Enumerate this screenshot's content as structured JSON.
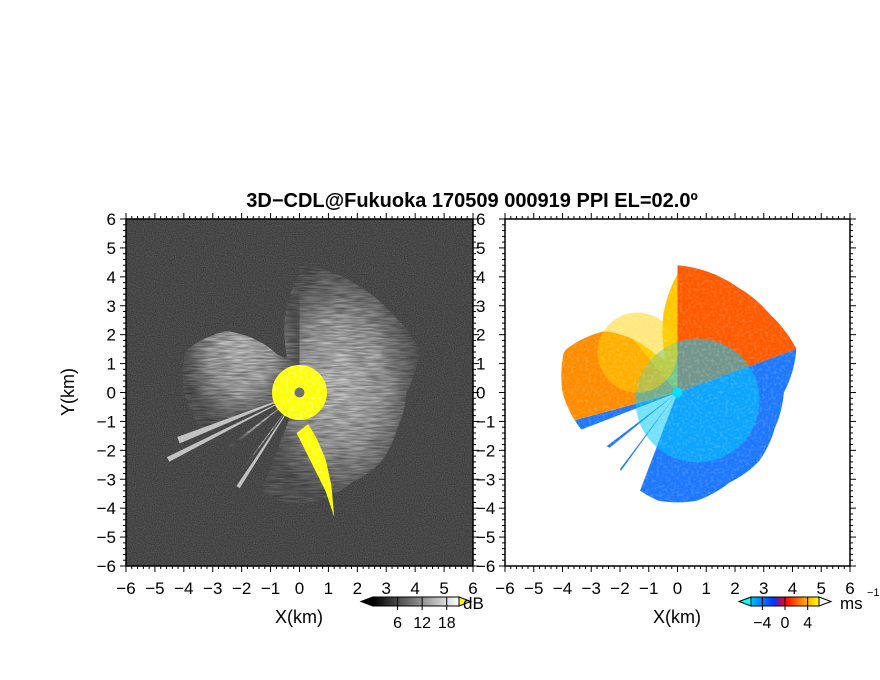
{
  "title": "3D−CDL@Fukuoka 170509 000919 PPI EL=02.0º",
  "chart_data": [
    {
      "type": "heatmap",
      "quantity": "reflectivity/SNR",
      "xlabel": "X(km)",
      "ylabel": "Y(km)",
      "xlim": [
        -6,
        6
      ],
      "ylim": [
        -6,
        6
      ],
      "x_ticks": [
        "−6",
        "−5",
        "−4",
        "−3",
        "−2",
        "−1",
        "0",
        "1",
        "2",
        "3",
        "4",
        "5",
        "6"
      ],
      "y_ticks": [
        "−6",
        "−5",
        "−4",
        "−3",
        "−2",
        "−1",
        "0",
        "1",
        "2",
        "3",
        "4",
        "5",
        "6"
      ],
      "colorbar": {
        "unit": "dB",
        "ticks": [
          "6",
          "12",
          "18"
        ],
        "tick_values": [
          6,
          12,
          18
        ],
        "range": [
          0,
          21
        ],
        "colors": [
          "#000000",
          "#ffffff"
        ],
        "over_color": "#ffff00"
      },
      "echo_extent_km": [
        [
          90,
          4.4
        ],
        [
          60,
          4.2
        ],
        [
          40,
          4.2
        ],
        [
          20,
          4.4
        ],
        [
          0,
          3.7
        ],
        [
          -20,
          3.6
        ],
        [
          -40,
          3.7
        ],
        [
          -60,
          3.6
        ],
        [
          -80,
          3.8
        ],
        [
          -100,
          3.8
        ],
        [
          -120,
          3.5
        ],
        [
          -140,
          3.0
        ],
        [
          -160,
          3.6
        ],
        [
          -180,
          4.0
        ],
        [
          -200,
          4.2
        ],
        [
          -220,
          3.3
        ],
        [
          -240,
          1.5
        ],
        [
          -250,
          1.2
        ],
        [
          -260,
          2.8
        ],
        [
          -270,
          4.1
        ]
      ],
      "gaps_deg": [
        [
          -158,
          -144
        ],
        [
          -140,
          -128
        ],
        [
          -125,
          -118
        ],
        [
          -121,
          -112
        ]
      ],
      "spokes_deg": [
        [
          -154,
          -152,
          5.1
        ],
        [
          -160,
          -157,
          4.5
        ],
        [
          -124,
          -122,
          3.9
        ]
      ],
      "yellow_region_km": [
        [
          0.3,
          -1.1
        ],
        [
          0.6,
          -1.6
        ],
        [
          0.9,
          -2.3
        ],
        [
          1.1,
          -3.2
        ],
        [
          1.2,
          -4.3
        ],
        [
          0.9,
          -3.4
        ],
        [
          0.4,
          -2.4
        ],
        [
          -0.1,
          -1.4
        ]
      ]
    },
    {
      "type": "heatmap",
      "quantity": "radial velocity",
      "xlabel": "X(km)",
      "ylabel": "",
      "xlim": [
        -6,
        6
      ],
      "ylim": [
        -6,
        6
      ],
      "x_ticks": [
        "−6",
        "−5",
        "−4",
        "−3",
        "−2",
        "−1",
        "0",
        "1",
        "2",
        "3",
        "4",
        "5",
        "6"
      ],
      "y_ticks": [
        "−6",
        "−5",
        "−4",
        "−3",
        "−2",
        "−1",
        "0",
        "1",
        "2",
        "3",
        "4",
        "5",
        "6"
      ],
      "colorbar": {
        "unit": "ms",
        "unit_exponent": "−1",
        "ticks": [
          "−4",
          "0",
          "4"
        ],
        "tick_values": [
          -4,
          0,
          4
        ],
        "range": [
          -6,
          6
        ],
        "colors": [
          "#00bfff",
          "#0033ff",
          "#ff0000",
          "#ffff00"
        ],
        "under_color": "#00ffff",
        "over_color": "#ffffff"
      },
      "echo_extent_km": [
        [
          90,
          4.4
        ],
        [
          60,
          4.2
        ],
        [
          40,
          4.2
        ],
        [
          20,
          4.4
        ],
        [
          0,
          3.7
        ],
        [
          -20,
          3.6
        ],
        [
          -40,
          3.7
        ],
        [
          -60,
          3.6
        ],
        [
          -80,
          3.8
        ],
        [
          -100,
          3.8
        ],
        [
          -120,
          3.5
        ],
        [
          -140,
          3.0
        ],
        [
          -160,
          3.6
        ],
        [
          -180,
          4.0
        ],
        [
          -200,
          4.2
        ],
        [
          -220,
          3.3
        ],
        [
          -240,
          1.5
        ],
        [
          -250,
          1.2
        ],
        [
          -260,
          2.8
        ],
        [
          -270,
          4.1
        ]
      ],
      "gaps_deg": [
        [
          -158,
          -144
        ],
        [
          -140,
          -128
        ],
        [
          -125,
          -118
        ],
        [
          -121,
          -112
        ]
      ],
      "direction_colors": [
        {
          "from_deg": 90,
          "to_deg": 20,
          "color": "#ff5a00"
        },
        {
          "from_deg": 20,
          "to_deg": -165,
          "color": "#1e78ff"
        },
        {
          "from_deg": -165,
          "to_deg": -230,
          "color": "#ff8c00"
        },
        {
          "from_deg": -230,
          "to_deg": -270,
          "color": "#ffc800"
        }
      ]
    }
  ]
}
